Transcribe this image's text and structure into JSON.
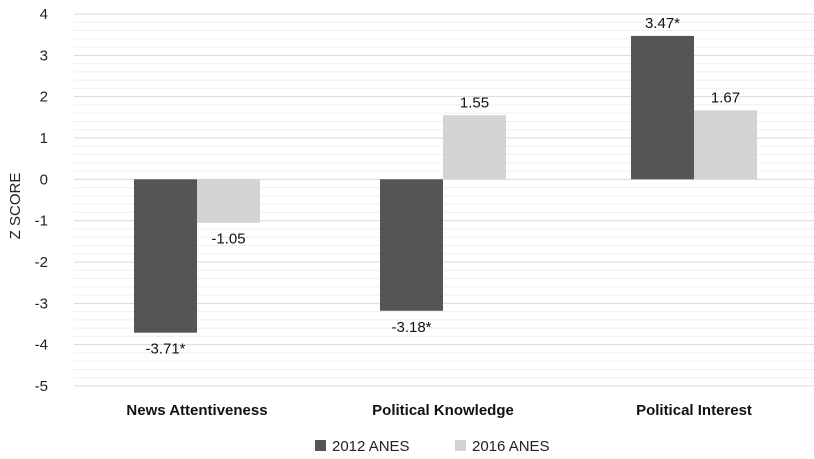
{
  "chart_data": {
    "type": "bar",
    "title": "",
    "xlabel": "",
    "ylabel": "Z SCORE",
    "ylim": [
      -5,
      4
    ],
    "yticks": [
      4,
      3,
      2,
      1,
      0,
      -1,
      -2,
      -3,
      -4,
      -5
    ],
    "grid": true,
    "legend_position": "bottom",
    "categories": [
      "News Attentiveness",
      "Political Knowledge",
      "Political Interest"
    ],
    "series": [
      {
        "name": "2012 ANES",
        "color": "#555557",
        "values": [
          -3.71,
          -3.18,
          3.47
        ],
        "labels": [
          "-3.71*",
          "-3.18*",
          "3.47*"
        ]
      },
      {
        "name": "2016 ANES",
        "color": "#d3d3d3",
        "values": [
          -1.05,
          1.55,
          1.67
        ],
        "labels": [
          "-1.05",
          "1.55",
          "1.67"
        ]
      }
    ]
  }
}
